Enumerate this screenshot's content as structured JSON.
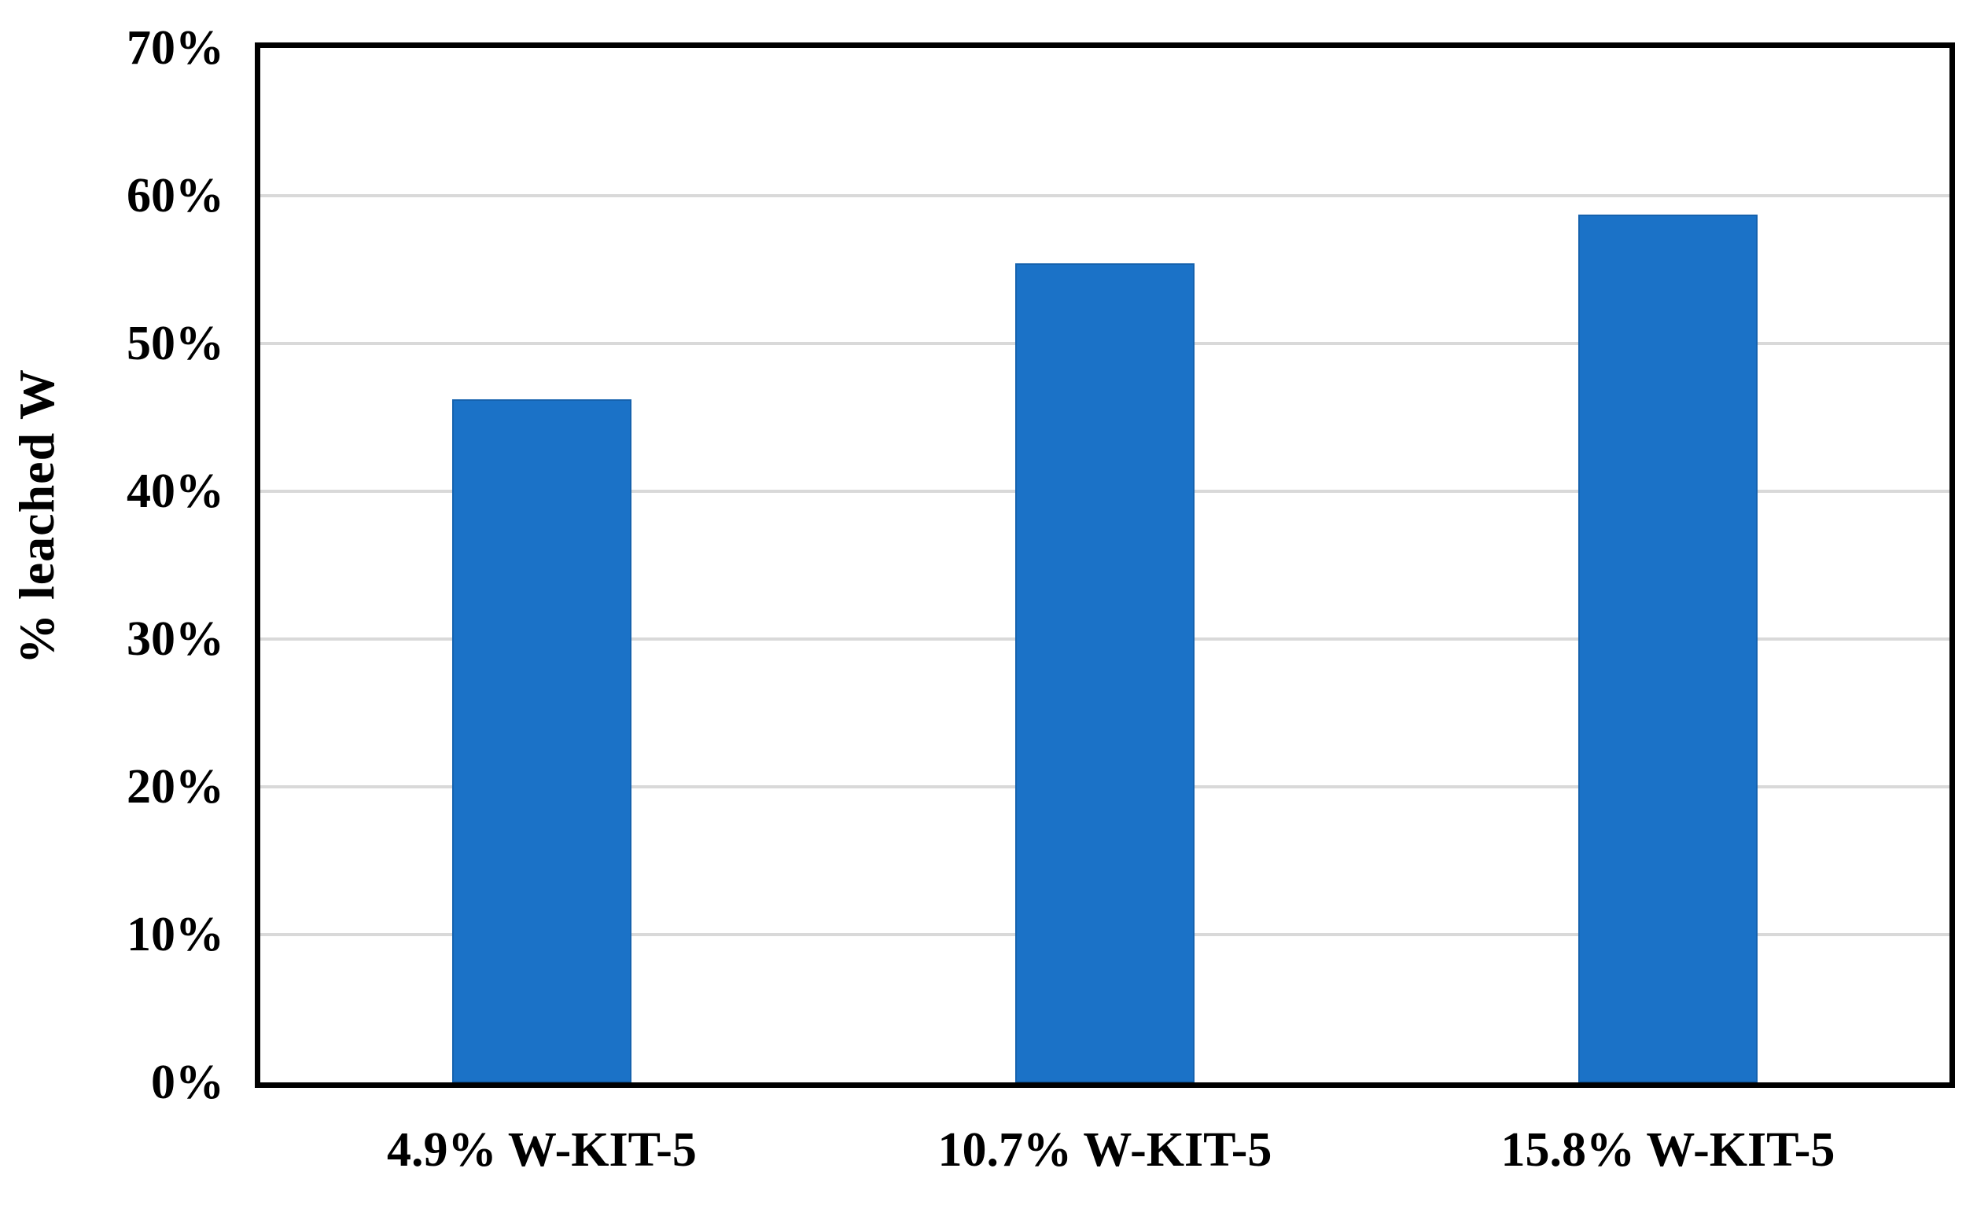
{
  "figure": {
    "background_color": "#ffffff",
    "text_color": "#000000"
  },
  "chart_data": {
    "type": "bar",
    "title": "",
    "categories": [
      "4.9% W-KIT-5",
      "10.7% W-KIT-5",
      "15.8% W-KIT-5"
    ],
    "values": [
      46.2,
      55.4,
      58.7
    ],
    "value_unit": "%",
    "xlabel": "",
    "ylabel": "% leached W",
    "ylim": [
      0,
      70
    ],
    "ytick_step": 10,
    "ytick_labels": [
      "0%",
      "10%",
      "20%",
      "30%",
      "40%",
      "50%",
      "60%",
      "70%"
    ],
    "grid": "horizontal-only",
    "legend": "none",
    "bar_color": "#1B72C7",
    "bar_border_color": "#1562AE",
    "gridline_color": "#D9D9D9",
    "frame_color": "#000000"
  }
}
